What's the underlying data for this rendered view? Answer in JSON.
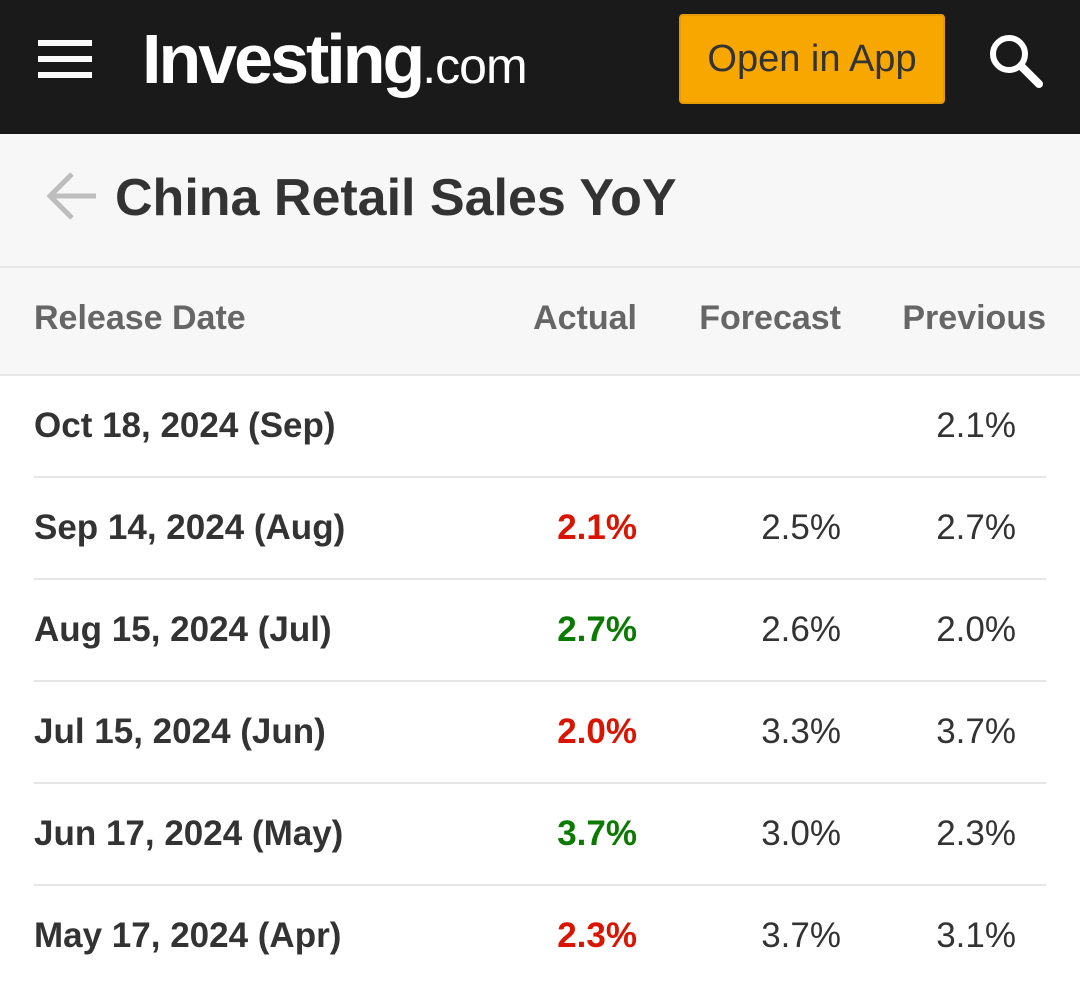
{
  "header": {
    "logo_main": "Investing",
    "logo_suffix": ".com",
    "open_app_label": "Open in App",
    "background_color": "#1a1a1a",
    "accent_color": "#f8a700"
  },
  "page": {
    "title": "China Retail Sales YoY",
    "back_icon": "arrow-left-icon"
  },
  "table": {
    "columns": {
      "release_date": "Release Date",
      "actual": "Actual",
      "forecast": "Forecast",
      "previous": "Previous"
    },
    "rows": [
      {
        "date": "Oct 18, 2024 (Sep)",
        "actual": "",
        "actual_status": "none",
        "forecast": "",
        "previous": "2.1%"
      },
      {
        "date": "Sep 14, 2024 (Aug)",
        "actual": "2.1%",
        "actual_status": "negative",
        "forecast": "2.5%",
        "previous": "2.7%"
      },
      {
        "date": "Aug 15, 2024 (Jul)",
        "actual": "2.7%",
        "actual_status": "positive",
        "forecast": "2.6%",
        "previous": "2.0%"
      },
      {
        "date": "Jul 15, 2024 (Jun)",
        "actual": "2.0%",
        "actual_status": "negative",
        "forecast": "3.3%",
        "previous": "3.7%"
      },
      {
        "date": "Jun 17, 2024 (May)",
        "actual": "3.7%",
        "actual_status": "positive",
        "forecast": "3.0%",
        "previous": "2.3%"
      },
      {
        "date": "May 17, 2024 (Apr)",
        "actual": "2.3%",
        "actual_status": "negative",
        "forecast": "3.7%",
        "previous": "3.1%"
      }
    ]
  },
  "colors": {
    "negative": "#d91400",
    "positive": "#0a7a00"
  }
}
